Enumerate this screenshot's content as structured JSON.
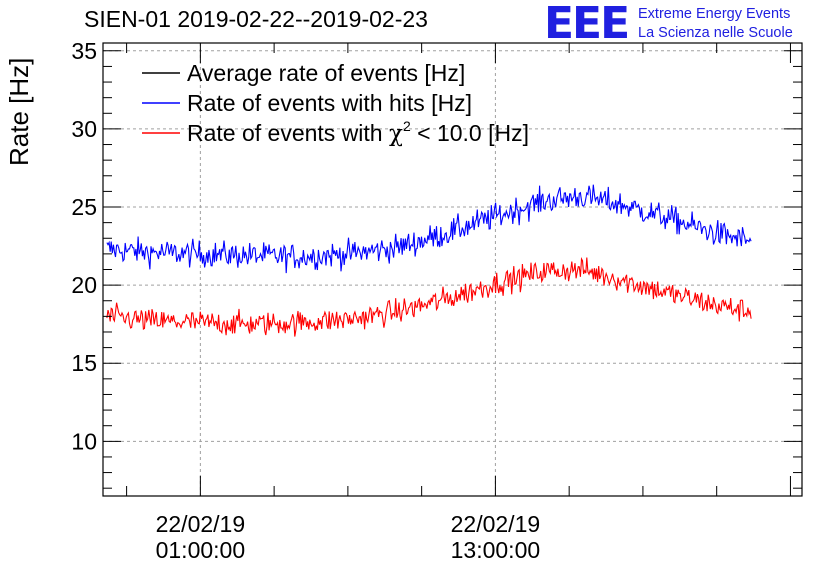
{
  "title": "SIEN-01 2019-02-22--2019-02-23",
  "logo": {
    "mark": "EEE",
    "line1": "Extreme Energy Events",
    "line2": "La Scienza nelle Scuole"
  },
  "chart_data": {
    "type": "line",
    "title": "SIEN-01 2019-02-22--2019-02-23",
    "xlabel": "",
    "ylabel": "Rate [Hz]",
    "ylim": [
      6.5,
      35.5
    ],
    "yticks": [
      10,
      15,
      20,
      25,
      30,
      35
    ],
    "x_unit": "hours since 2019-02-22 00:00",
    "xlim": [
      -2.96,
      25.47
    ],
    "xticks": [
      {
        "hour": 1,
        "date": "22/02/19",
        "time": "01:00:00"
      },
      {
        "hour": 13,
        "date": "22/02/19",
        "time": "13:00:00"
      }
    ],
    "grid": true,
    "legend_position": "top-left",
    "series": [
      {
        "name": "Average rate of events [Hz]",
        "color": "#000000",
        "x": [],
        "values": []
      },
      {
        "name": "Rate of events with hits [Hz]",
        "color": "#0000ff",
        "noise": 0.6,
        "x": [
          -2.8,
          -1.0,
          1.0,
          3.0,
          5.0,
          7.0,
          9.0,
          11.0,
          13.0,
          15.0,
          16.5,
          18.0,
          20.0,
          22.0,
          23.4
        ],
        "values": [
          22.3,
          22.1,
          22.0,
          21.9,
          21.8,
          22.0,
          22.4,
          23.3,
          24.4,
          25.4,
          25.7,
          25.2,
          24.3,
          23.3,
          22.8
        ]
      },
      {
        "name": "Rate of events with χ² < 10.0 [Hz]",
        "color": "#ff0000",
        "noise": 0.55,
        "x": [
          -2.8,
          -1.0,
          1.0,
          3.0,
          5.0,
          7.0,
          9.0,
          11.0,
          13.0,
          15.0,
          16.5,
          18.0,
          20.0,
          22.0,
          23.4
        ],
        "values": [
          18.0,
          17.7,
          17.6,
          17.5,
          17.6,
          17.8,
          18.3,
          19.1,
          20.1,
          20.9,
          21.0,
          20.4,
          19.5,
          18.7,
          18.3
        ]
      }
    ],
    "legend": [
      {
        "label": "Average rate of events [Hz]",
        "color": "#000000"
      },
      {
        "label": "Rate of events with hits [Hz]",
        "color": "#0000ff"
      },
      {
        "label_pre": "Rate of events with ",
        "label_sym": "χ",
        "label_sup": "2",
        "label_post": " < 10.0 [Hz]",
        "color": "#ff0000"
      }
    ]
  }
}
